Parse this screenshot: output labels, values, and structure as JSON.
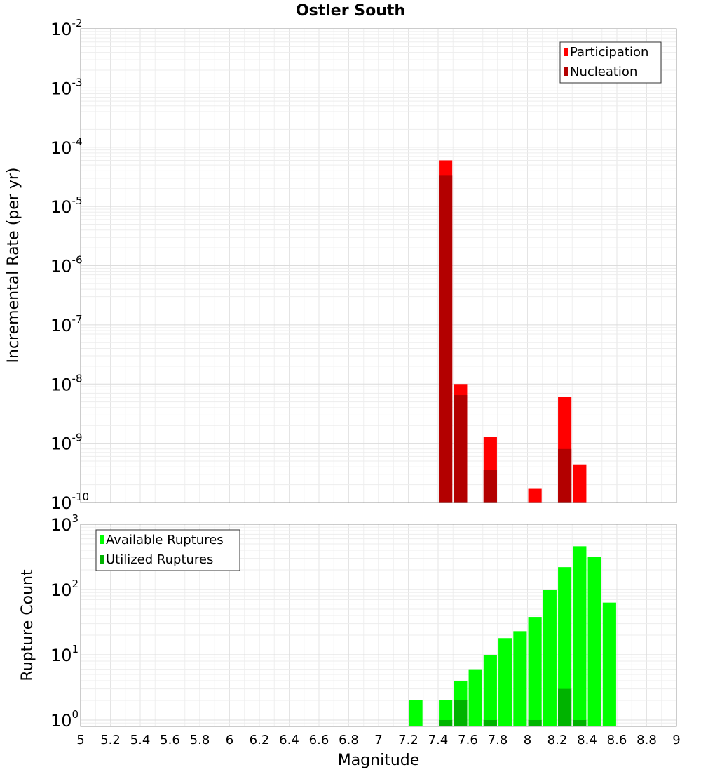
{
  "title": "Ostler South",
  "chart_data": [
    {
      "type": "bar",
      "name": "rate-panel",
      "ylabel": "Incremental Rate (per yr)",
      "yscale": "log",
      "ylim": [
        1e-10,
        0.01
      ],
      "y_ticks": [
        {
          "exp": "-10"
        },
        {
          "exp": "-9"
        },
        {
          "exp": "-8"
        },
        {
          "exp": "-7"
        },
        {
          "exp": "-6"
        },
        {
          "exp": "-5"
        },
        {
          "exp": "-4"
        },
        {
          "exp": "-3"
        },
        {
          "exp": "-2"
        }
      ],
      "y_tick_base": "10",
      "xlim": [
        5,
        9
      ],
      "grid": true,
      "legend_position": "top-right",
      "bar_width": 0.09,
      "series": [
        {
          "name": "Participation",
          "color": "#ff0000",
          "points": [
            {
              "x": 7.45,
              "y": 6e-05
            },
            {
              "x": 7.55,
              "y": 1e-08
            },
            {
              "x": 7.75,
              "y": 1.3e-09
            },
            {
              "x": 8.05,
              "y": 1.7e-10
            },
            {
              "x": 8.25,
              "y": 6e-09
            },
            {
              "x": 8.35,
              "y": 4.4e-10
            }
          ]
        },
        {
          "name": "Nucleation",
          "color": "#b30000",
          "points": [
            {
              "x": 7.45,
              "y": 3.3e-05
            },
            {
              "x": 7.55,
              "y": 6.5e-09
            },
            {
              "x": 7.75,
              "y": 3.6e-10
            },
            {
              "x": 8.25,
              "y": 8e-10
            }
          ]
        }
      ]
    },
    {
      "type": "bar",
      "name": "count-panel",
      "ylabel": "Rupture Count",
      "xlabel": "Magnitude",
      "yscale": "log",
      "ylim": [
        0.8,
        1000
      ],
      "y_ticks": [
        {
          "value": 1,
          "exp": "0"
        },
        {
          "value": 10,
          "exp": "1"
        },
        {
          "value": 100,
          "exp": "2"
        },
        {
          "value": 1000,
          "exp": "3"
        }
      ],
      "y_tick_base": "10",
      "xlim": [
        5,
        9
      ],
      "x_ticks": [
        "5",
        "5.2",
        "5.4",
        "5.6",
        "5.8",
        "6",
        "6.2",
        "6.4",
        "6.6",
        "6.8",
        "7",
        "7.2",
        "7.4",
        "7.6",
        "7.8",
        "8",
        "8.2",
        "8.4",
        "8.6",
        "8.8",
        "9"
      ],
      "grid": true,
      "legend_position": "top-left",
      "bar_width": 0.09,
      "series": [
        {
          "name": "Available Ruptures",
          "color": "#00ff00",
          "points": [
            {
              "x": 7.25,
              "y": 2
            },
            {
              "x": 7.45,
              "y": 2
            },
            {
              "x": 7.55,
              "y": 4
            },
            {
              "x": 7.65,
              "y": 6
            },
            {
              "x": 7.75,
              "y": 10
            },
            {
              "x": 7.85,
              "y": 18
            },
            {
              "x": 7.95,
              "y": 23
            },
            {
              "x": 8.05,
              "y": 38
            },
            {
              "x": 8.15,
              "y": 100
            },
            {
              "x": 8.25,
              "y": 220
            },
            {
              "x": 8.35,
              "y": 460
            },
            {
              "x": 8.45,
              "y": 320
            },
            {
              "x": 8.55,
              "y": 63
            }
          ]
        },
        {
          "name": "Utilized Ruptures",
          "color": "#00b300",
          "points": [
            {
              "x": 7.45,
              "y": 1
            },
            {
              "x": 7.55,
              "y": 2
            },
            {
              "x": 7.75,
              "y": 1
            },
            {
              "x": 8.05,
              "y": 1
            },
            {
              "x": 8.25,
              "y": 3
            },
            {
              "x": 8.35,
              "y": 1
            }
          ]
        }
      ]
    }
  ]
}
